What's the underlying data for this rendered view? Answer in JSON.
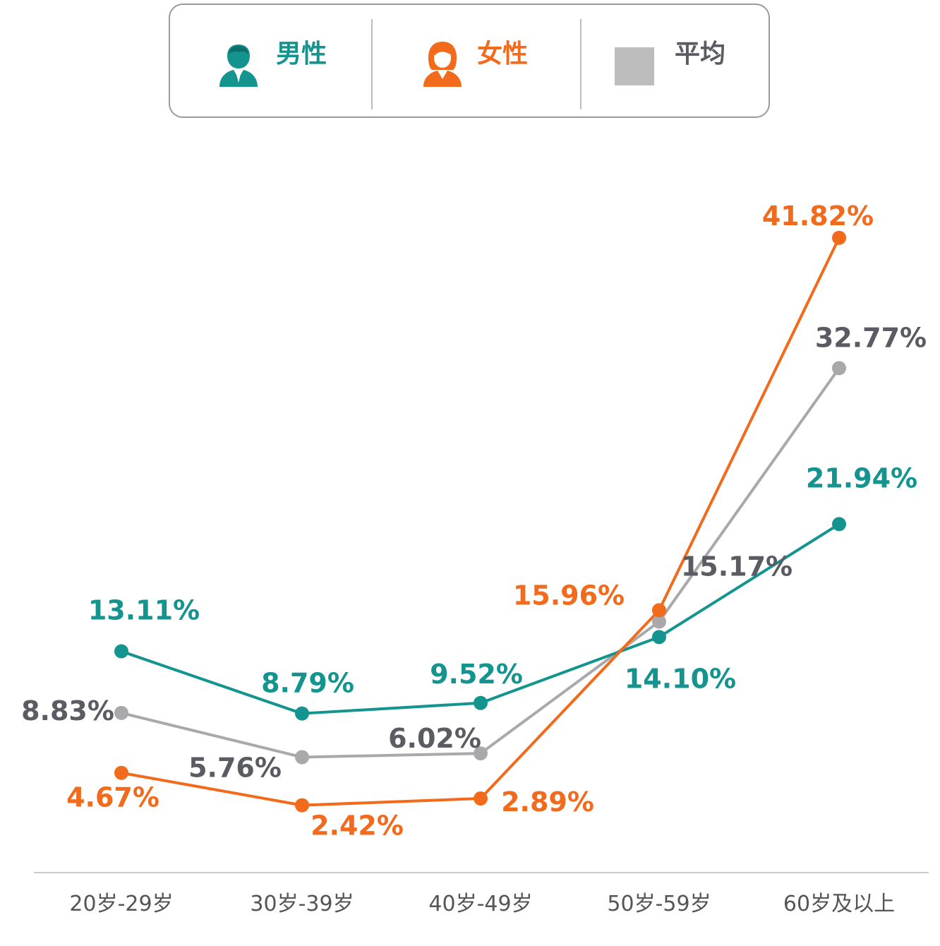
{
  "legend": {
    "male_label": "男性",
    "female_label": "女性",
    "average_label": "平均",
    "male_icon": "male-person-icon",
    "female_icon": "female-person-icon"
  },
  "colors": {
    "male": "#13948f",
    "female": "#f26a1b",
    "average": "#a9a9ab",
    "average_label": "#5b5b63",
    "axis": "#cccccc"
  },
  "chart_data": {
    "type": "line",
    "categories": [
      "20岁-29岁",
      "30岁-39岁",
      "40岁-49岁",
      "50岁-59岁",
      "60岁及以上"
    ],
    "series": [
      {
        "name": "男性",
        "values": [
          13.11,
          8.79,
          9.52,
          14.1,
          21.94
        ],
        "labels": [
          "13.11%",
          "8.79%",
          "9.52%",
          "14.10%",
          "21.94%"
        ]
      },
      {
        "name": "女性",
        "values": [
          4.67,
          2.42,
          2.89,
          15.96,
          41.82
        ],
        "labels": [
          "4.67%",
          "2.42%",
          "2.89%",
          "15.96%",
          "41.82%"
        ]
      },
      {
        "name": "平均",
        "values": [
          8.83,
          5.76,
          6.02,
          15.17,
          32.77
        ],
        "labels": [
          "8.83%",
          "5.76%",
          "6.02%",
          "15.17%",
          "32.77%"
        ]
      }
    ],
    "ylim": [
      0,
      45
    ],
    "grid": false,
    "legend_position": "top-center",
    "title": "",
    "xlabel": "",
    "ylabel": ""
  }
}
